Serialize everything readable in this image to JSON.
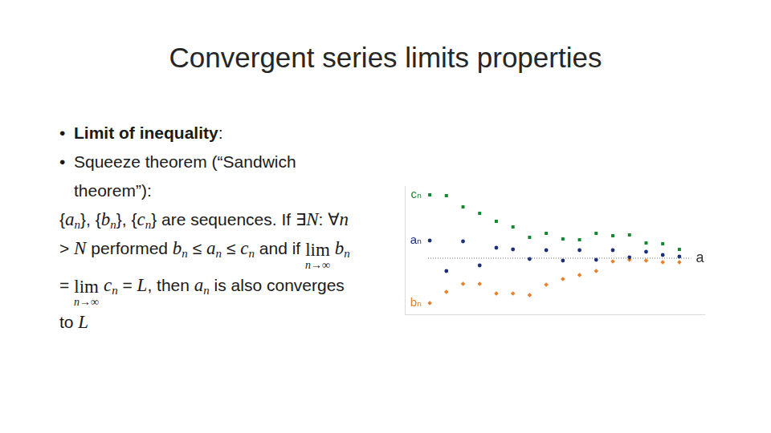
{
  "title": "Convergent series limits properties",
  "items": [
    {
      "bullet": true,
      "segments": [
        {
          "b": "Limit of inequality"
        },
        {
          "t": ":"
        }
      ]
    },
    {
      "bullet": true,
      "segments": [
        {
          "t": "Squeeze theorem (“Sandwich theorem”):"
        }
      ]
    },
    {
      "bullet": false,
      "segments": [
        {
          "t": "{"
        },
        {
          "m": "a",
          "sub": "n"
        },
        {
          "t": "}, {"
        },
        {
          "m": "b",
          "sub": "n"
        },
        {
          "t": "}, {"
        },
        {
          "m": "c",
          "sub": "n"
        },
        {
          "t": "} are sequences. If ∃"
        },
        {
          "m": "N"
        },
        {
          "t": ": ∀"
        },
        {
          "m": "n"
        },
        {
          "t": " > "
        },
        {
          "m": "N"
        },
        {
          "t": " performed "
        },
        {
          "m": "b",
          "sub": "n"
        },
        {
          "t": " ≤ "
        },
        {
          "m": "a",
          "sub": "n"
        },
        {
          "t": " ≤ "
        },
        {
          "m": "c",
          "sub": "n"
        },
        {
          "t": " and if "
        },
        {
          "lim": "lim",
          "under": "n→∞"
        },
        {
          "t": " "
        },
        {
          "m": "b",
          "sub": "n"
        },
        {
          "t": " = "
        },
        {
          "lim": "lim",
          "under": "n→∞"
        },
        {
          "t": " "
        },
        {
          "m": "c",
          "sub": "n"
        },
        {
          "t": " = "
        },
        {
          "m": "L"
        },
        {
          "t": ", then "
        },
        {
          "m": "a",
          "sub": "n"
        },
        {
          "t": " is also converges to "
        },
        {
          "m": "L"
        }
      ]
    }
  ],
  "chart_data": {
    "type": "scatter",
    "x": [
      1,
      2,
      3,
      4,
      5,
      6,
      7,
      8,
      9,
      10,
      11,
      12,
      13,
      14,
      15,
      16
    ],
    "series": [
      {
        "name": "cₙ",
        "color": "#13882f",
        "marker": "square",
        "values": [
          7.9,
          7.8,
          6.4,
          5.6,
          4.6,
          3.9,
          2.6,
          3.1,
          2.4,
          2.3,
          3.1,
          2.8,
          2.9,
          1.9,
          1.8,
          1.1
        ]
      },
      {
        "name": "aₙ",
        "color": "#1b2f7a",
        "marker": "circle",
        "values": [
          2.2,
          -1.6,
          2.1,
          -0.9,
          1.3,
          1.1,
          -0.1,
          1.0,
          -0.3,
          1.0,
          -0.2,
          1.0,
          0.1,
          0.8,
          0.4,
          0.2
        ]
      },
      {
        "name": "bₙ",
        "color": "#e8812a",
        "marker": "diamond",
        "values": [
          -5.6,
          -4.2,
          -3.2,
          -3.2,
          -4.4,
          -4.4,
          -4.6,
          -3.3,
          -2.6,
          -2.1,
          -1.6,
          -0.4,
          -0.2,
          -0.3,
          -0.5,
          -0.5
        ]
      }
    ],
    "reference_line": {
      "value": 0,
      "label": "a",
      "x": [
        0.9,
        16.7
      ],
      "color": "#777777",
      "line_style": "dotted"
    },
    "xlim": [
      -0.5,
      17.5
    ],
    "ylim": [
      -7,
      9
    ],
    "grid": false,
    "tick_labels": false
  }
}
